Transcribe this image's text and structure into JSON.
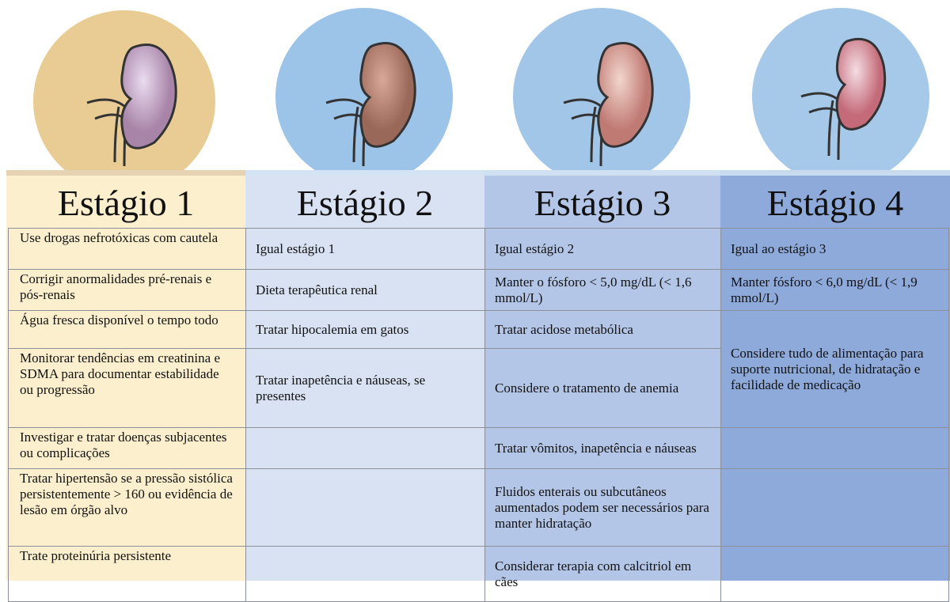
{
  "columns": [
    {
      "title": "Estágio 1",
      "cells": [
        "Use drogas nefrotóxicas com cautela",
        "Corrigir anormalidades pré-renais e pós-renais",
        "Água fresca disponível o tempo todo",
        "Monitorar tendências em creatinina e SDMA para documentar estabilidade ou progressão",
        "Investigar e tratar doenças subjacentes ou complicações",
        "Tratar hipertensão se a pressão sistólica persistentemente > 160 ou evidência de lesão em órgão alvo",
        "Trate proteinúria persistente"
      ]
    },
    {
      "title": "Estágio 2",
      "cells": [
        "Igual estágio 1",
        "Dieta terapêutica renal",
        "Tratar hipocalemia em gatos",
        "Tratar inapetência e náuseas, se presentes"
      ]
    },
    {
      "title": "Estágio 3",
      "cells": [
        "Igual estágio 2",
        "Manter o fósforo < 5,0 mg/dL (< 1,6 mmol/L)",
        "Tratar acidose metabólica",
        "Considere o tratamento de anemia",
        "Tratar vômitos, inapetência e náuseas",
        "Fluidos enterais ou subcutâneos aumentados podem ser necessários para manter hidratação",
        "Considerar terapia com calcitriol em cães"
      ]
    },
    {
      "title": "Estágio 4",
      "cells": [
        "Igual ao estágio 3",
        "Manter fósforo < 6,0 mg/dL (< 1,9 mmol/L)",
        "Considere tudo de alimentação para suporte nutricional, de hidratação e facilidade de medicação"
      ]
    }
  ]
}
